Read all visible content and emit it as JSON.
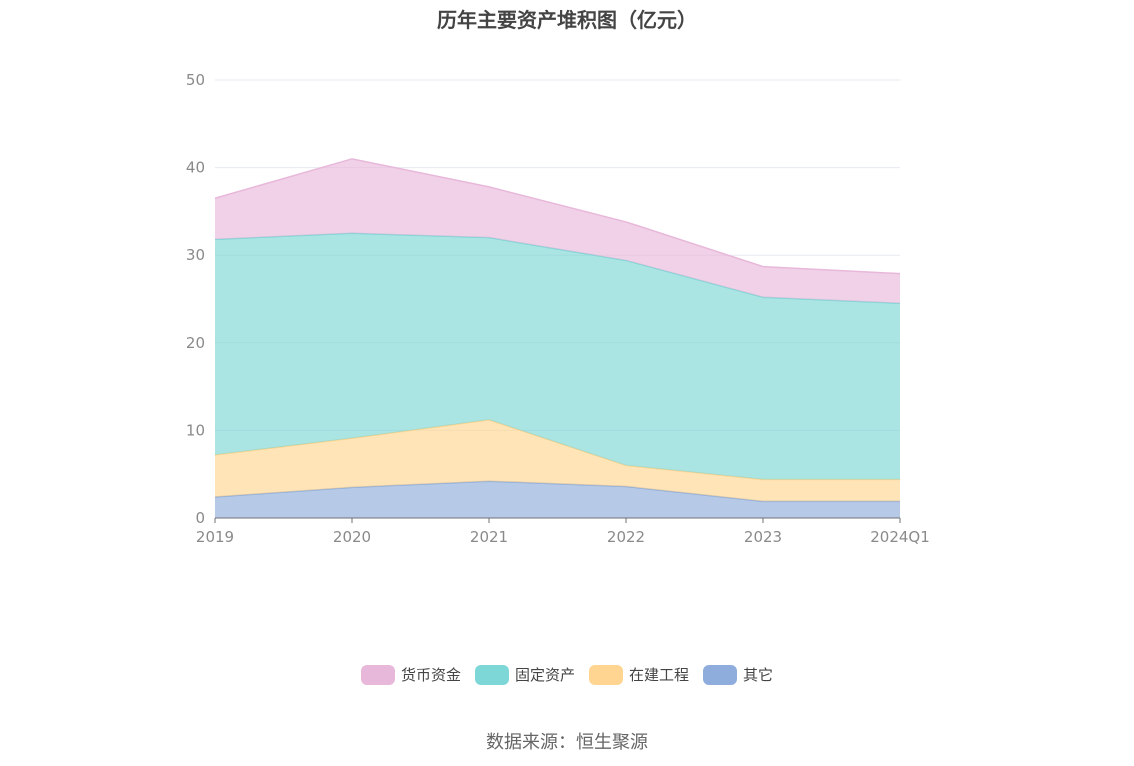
{
  "title": "历年主要资产堆积图（亿元）",
  "source": "数据来源：恒生聚源",
  "chart_data": {
    "type": "area",
    "stacked": true,
    "categories": [
      "2019",
      "2020",
      "2021",
      "2022",
      "2023",
      "2024Q1"
    ],
    "ylim": [
      0,
      50
    ],
    "yticks": [
      0,
      10,
      20,
      30,
      40,
      50
    ],
    "grid": true,
    "legend_position": "bottom",
    "series": [
      {
        "name": "其它",
        "color": "#8FADDC",
        "values": [
          2.4,
          3.5,
          4.2,
          3.6,
          1.9,
          1.9
        ]
      },
      {
        "name": "在建工程",
        "color": "#FFD591",
        "values": [
          4.8,
          5.6,
          7.0,
          2.4,
          2.5,
          2.5
        ]
      },
      {
        "name": "固定资产",
        "color": "#7DD7D6",
        "values": [
          24.6,
          23.4,
          20.8,
          23.4,
          20.8,
          20.1
        ]
      },
      {
        "name": "货币资金",
        "color": "#E8B8DA",
        "values": [
          4.7,
          8.5,
          5.8,
          4.4,
          3.5,
          3.4
        ]
      }
    ],
    "legend_order": [
      "货币资金",
      "固定资产",
      "在建工程",
      "其它"
    ]
  }
}
